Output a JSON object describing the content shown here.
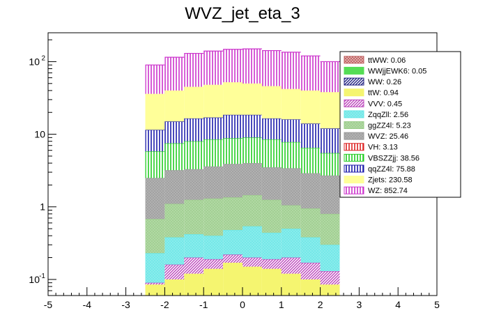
{
  "title": "WVZ_jet_eta_3",
  "chart_data": {
    "type": "bar",
    "stacked": true,
    "log_y": true,
    "title": "WVZ_jet_eta_3",
    "xlim": [
      -5,
      5
    ],
    "ylim": [
      0.06,
      250
    ],
    "x_ticks": [
      "-5",
      "-4",
      "-3",
      "-2",
      "-1",
      "0",
      "1",
      "2",
      "3",
      "4",
      "5"
    ],
    "y_ticks": [
      {
        "value": 0.1,
        "base": "10",
        "exp": "-1"
      },
      {
        "value": 1,
        "label": "1"
      },
      {
        "value": 10,
        "label": "10"
      },
      {
        "value": 100,
        "base": "10",
        "exp": "2"
      }
    ],
    "bin_edges": [
      -2.5,
      -2.0,
      -1.5,
      -1.0,
      -0.5,
      0.0,
      0.5,
      1.0,
      1.5,
      2.0,
      2.5
    ],
    "legend_position": "top-right",
    "stack_order_bottom_to_top": [
      "ttW",
      "VVV",
      "ZqqZll",
      "ggZZ4l",
      "WVZ",
      "VBSZZjj",
      "qqZZ4l",
      "Zjets",
      "WZ"
    ],
    "stack_tops": {
      "ttW": [
        0.085,
        0.1,
        0.12,
        0.14,
        0.17,
        0.15,
        0.14,
        0.12,
        0.1,
        0.085
      ],
      "VVV": [
        0.09,
        0.16,
        0.2,
        0.19,
        0.22,
        0.2,
        0.19,
        0.2,
        0.17,
        0.13
      ],
      "ZqqZll": [
        0.23,
        0.38,
        0.42,
        0.4,
        0.48,
        0.54,
        0.44,
        0.5,
        0.38,
        0.3
      ],
      "ggZZ4l": [
        0.68,
        1.1,
        1.25,
        1.3,
        1.35,
        1.45,
        1.25,
        1.05,
        0.95,
        0.8
      ],
      "WVZ": [
        2.5,
        3.2,
        3.3,
        3.6,
        3.9,
        4.0,
        3.5,
        3.4,
        2.9,
        2.7
      ],
      "VBSZZjj": [
        5.8,
        7.5,
        8.0,
        8.5,
        8.8,
        9.0,
        8.5,
        7.8,
        6.5,
        5.5
      ],
      "qqZZ4l": [
        11.5,
        15.0,
        16.5,
        17.0,
        18.5,
        18.5,
        16.5,
        16.0,
        14.0,
        12.0
      ],
      "Zjets": [
        36,
        40,
        45,
        48,
        52,
        50,
        46,
        42,
        40,
        38
      ],
      "WZ": [
        90,
        115,
        130,
        140,
        148,
        150,
        142,
        135,
        120,
        100
      ]
    },
    "series": [
      {
        "name": "ttWW: 0.06",
        "color": "#c06060",
        "hatch": "cross"
      },
      {
        "name": "WWjjEWK6: 0.05",
        "color": "#55dd55",
        "hatch": "solid"
      },
      {
        "name": "WW: 0.26",
        "color": "#202080",
        "hatch": "diag"
      },
      {
        "name": "ttW: 0.94",
        "color": "#f5f570",
        "hatch": "solid"
      },
      {
        "name": "VVV: 0.45",
        "color": "#bb44bb",
        "hatch": "diag"
      },
      {
        "name": "ZqqZll: 2.56",
        "color": "#66e6e6",
        "hatch": "dense"
      },
      {
        "name": "ggZZ4l: 5.23",
        "color": "#99cc88",
        "hatch": "dense"
      },
      {
        "name": "WVZ: 25.46",
        "color": "#999999",
        "hatch": "dense"
      },
      {
        "name": "VH: 3.13",
        "color": "#dd2222",
        "hatch": "vert"
      },
      {
        "name": "VBSZZjj: 38.56",
        "color": "#22cc22",
        "hatch": "vert"
      },
      {
        "name": "qqZZ4l: 75.88",
        "color": "#1a1aaa",
        "hatch": "vert"
      },
      {
        "name": "Zjets: 230.58",
        "color": "#ffff99",
        "hatch": "solid"
      },
      {
        "name": "WZ: 852.74",
        "color": "#cc33cc",
        "hatch": "vert"
      }
    ]
  }
}
